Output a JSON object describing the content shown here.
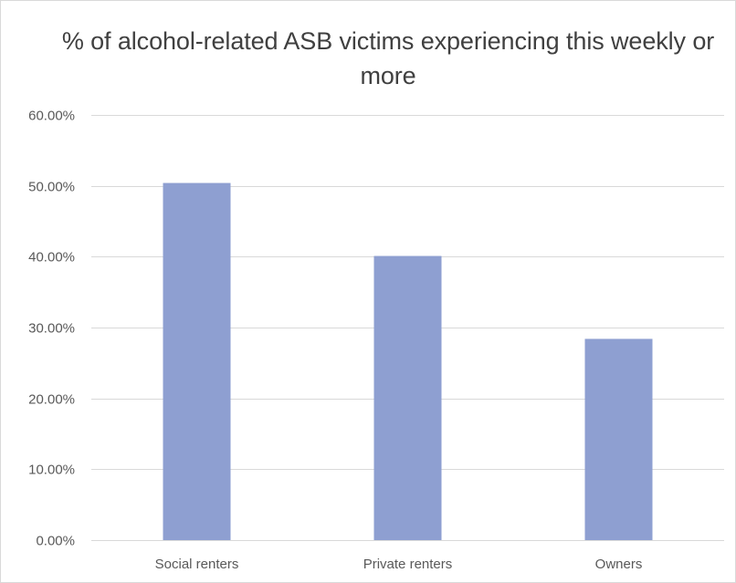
{
  "chart_data": {
    "type": "bar",
    "title": "% of alcohol-related ASB victims experiencing this weekly or more",
    "categories": [
      "Social renters",
      "Private renters",
      "Owners"
    ],
    "values": [
      50.4,
      40.1,
      28.4
    ],
    "value_format": "percent",
    "ylim": [
      0,
      60
    ],
    "yticks": [
      0,
      10,
      20,
      30,
      40,
      50,
      60
    ],
    "ytick_labels": [
      "0.00%",
      "10.00%",
      "20.00%",
      "30.00%",
      "40.00%",
      "50.00%",
      "60.00%"
    ],
    "xlabel": "",
    "ylabel": "",
    "grid": true,
    "legend": "none",
    "bar_color": "#8e9fd1",
    "grid_color": "#d9d9d9",
    "text_color": "#595959",
    "title_color": "#404040"
  }
}
